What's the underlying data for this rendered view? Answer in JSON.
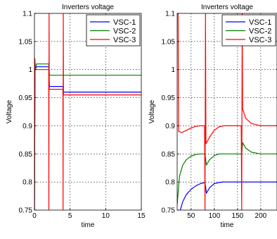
{
  "chart_data": [
    {
      "type": "line",
      "title": "Inverters voltage",
      "xlabel": "time",
      "ylabel": "Voltage",
      "xlim": [
        0,
        15
      ],
      "ylim": [
        0.75,
        1.1
      ],
      "xticks": [
        0,
        5,
        10,
        15
      ],
      "yticks": [
        0.75,
        0.8,
        0.85,
        0.9,
        0.95,
        1,
        1.05,
        1.1
      ],
      "ytick_labels": [
        "0.75",
        "0.8",
        "0.85",
        "0.9",
        "0.95",
        "1",
        "1.05",
        "1.1"
      ],
      "grid": true,
      "legend_position": "top-right",
      "series": [
        {
          "name": "VSC-1",
          "color": "#0000ff",
          "points": [
            [
              0,
              0.75
            ],
            [
              0.08,
              1.0
            ],
            [
              0.3,
              1.005
            ],
            [
              2,
              1.005
            ],
            [
              2.1,
              0.97
            ],
            [
              4,
              0.97
            ],
            [
              4.1,
              0.96
            ],
            [
              15,
              0.96
            ]
          ]
        },
        {
          "name": "VSC-2",
          "color": "#008000",
          "points": [
            [
              0,
              0.75
            ],
            [
              0.08,
              1.0
            ],
            [
              0.3,
              1.01
            ],
            [
              2,
              1.01
            ],
            [
              2.1,
              0.99
            ],
            [
              4,
              0.99
            ],
            [
              4.1,
              0.99
            ],
            [
              15,
              0.99
            ]
          ]
        },
        {
          "name": "VSC-3",
          "color": "#ff0000",
          "points": [
            [
              0,
              0.75
            ],
            [
              0.05,
              1.02
            ],
            [
              0.15,
              1.0
            ],
            [
              2,
              1.0
            ],
            [
              2.02,
              0.75
            ],
            [
              2.05,
              1.1
            ],
            [
              2.08,
              0.965
            ],
            [
              4,
              0.965
            ],
            [
              4.02,
              0.75
            ],
            [
              4.05,
              1.1
            ],
            [
              4.08,
              0.955
            ],
            [
              15,
              0.955
            ]
          ]
        }
      ]
    },
    {
      "type": "line",
      "title": "Inverters voltage",
      "xlabel": "time",
      "ylabel": "Voltage",
      "xlim": [
        20,
        235
      ],
      "ylim": [
        0.75,
        1.1
      ],
      "xticks": [
        50,
        100,
        150,
        200
      ],
      "yticks": [
        0.75,
        0.8,
        0.85,
        0.9,
        0.95,
        1,
        1.05,
        1.1
      ],
      "ytick_labels": [
        "0.75",
        "0.8",
        "0.85",
        "0.9",
        "0.95",
        "1",
        "1.05",
        "1.1"
      ],
      "grid": true,
      "legend_position": "top-right",
      "series": [
        {
          "name": "VSC-1",
          "color": "#0000ff",
          "points": [
            [
              20,
              0.72
            ],
            [
              25,
              0.745
            ],
            [
              32,
              0.765
            ],
            [
              40,
              0.778
            ],
            [
              50,
              0.787
            ],
            [
              60,
              0.793
            ],
            [
              70,
              0.797
            ],
            [
              80,
              0.799
            ],
            [
              83,
              0.78
            ],
            [
              90,
              0.79
            ],
            [
              100,
              0.797
            ],
            [
              110,
              0.799
            ],
            [
              120,
              0.8
            ],
            [
              150,
              0.8
            ],
            [
              160,
              0.8
            ],
            [
              165,
              0.8
            ],
            [
              170,
              0.8
            ],
            [
              200,
              0.8
            ],
            [
              235,
              0.8
            ]
          ]
        },
        {
          "name": "VSC-2",
          "color": "#008000",
          "points": [
            [
              20,
              0.76
            ],
            [
              25,
              0.81
            ],
            [
              32,
              0.83
            ],
            [
              40,
              0.84
            ],
            [
              50,
              0.846
            ],
            [
              60,
              0.849
            ],
            [
              70,
              0.85
            ],
            [
              80,
              0.85
            ],
            [
              83,
              0.83
            ],
            [
              90,
              0.84
            ],
            [
              100,
              0.847
            ],
            [
              110,
              0.85
            ],
            [
              120,
              0.85
            ],
            [
              150,
              0.85
            ],
            [
              159,
              0.85
            ],
            [
              161,
              0.87
            ],
            [
              168,
              0.86
            ],
            [
              180,
              0.853
            ],
            [
              200,
              0.85
            ],
            [
              235,
              0.85
            ]
          ]
        },
        {
          "name": "VSC-3",
          "color": "#ff0000",
          "points": [
            [
              20,
              1.1
            ],
            [
              22,
              1.1
            ],
            [
              23,
              0.89
            ],
            [
              30,
              0.888
            ],
            [
              40,
              0.892
            ],
            [
              50,
              0.896
            ],
            [
              60,
              0.899
            ],
            [
              70,
              0.9
            ],
            [
              79,
              0.9
            ],
            [
              80,
              0.75
            ],
            [
              81,
              1.1
            ],
            [
              82,
              0.868
            ],
            [
              90,
              0.88
            ],
            [
              100,
              0.892
            ],
            [
              110,
              0.898
            ],
            [
              120,
              0.9
            ],
            [
              150,
              0.9
            ],
            [
              158,
              0.9
            ],
            [
              159,
              0.75
            ],
            [
              160,
              1.1
            ],
            [
              161,
              0.93
            ],
            [
              168,
              0.913
            ],
            [
              180,
              0.904
            ],
            [
              200,
              0.9
            ],
            [
              235,
              0.9
            ]
          ]
        }
      ]
    }
  ]
}
